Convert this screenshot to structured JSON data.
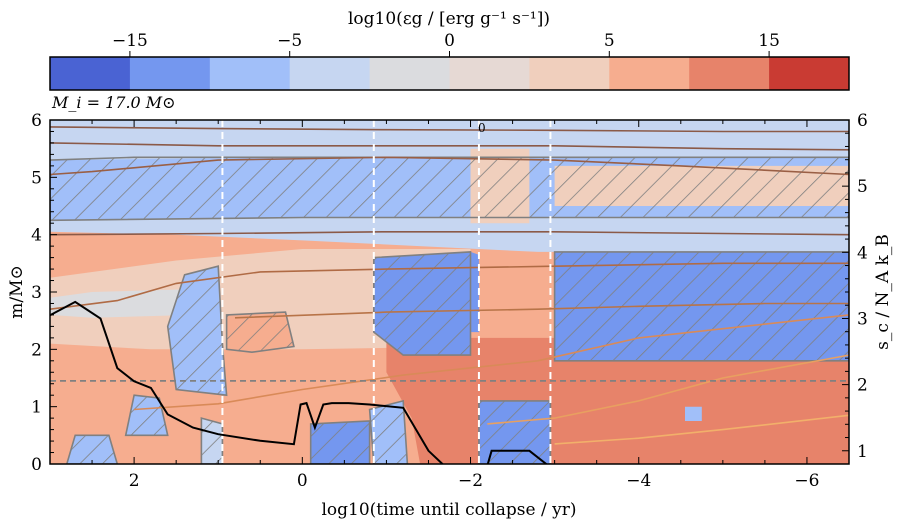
{
  "chart_data": {
    "type": "heatmap",
    "title": "",
    "mass_label": "M_i = 17.0 M⊙",
    "colorbar": {
      "label": "log10(εg / [erg g⁻¹ s⁻¹])",
      "ticks": [
        -15,
        -5,
        0,
        5,
        15
      ],
      "tick_labels": [
        "−15",
        "−5",
        "0",
        "5",
        "15"
      ],
      "bins": [
        "-20",
        "-15",
        "-10",
        "-5",
        "-1",
        "0",
        "1",
        "5",
        "10",
        "15",
        "20"
      ],
      "colors": [
        "#4a63d3",
        "#7497ef",
        "#a1bff9",
        "#c6d6f1",
        "#dbdcdf",
        "#e6d9d4",
        "#f0cfbd",
        "#f6ad8f",
        "#e7836a",
        "#c93b33"
      ]
    },
    "xlabel": "log10(time until collapse / yr)",
    "x_reversed": true,
    "xlim": [
      3.0,
      -6.5
    ],
    "xticks": [
      2,
      0,
      -2,
      -4,
      -6
    ],
    "xtick_labels": [
      "2",
      "0",
      "−2",
      "−4",
      "−6"
    ],
    "ylabel_left": "m/M⊙",
    "ylim_left": [
      0,
      6
    ],
    "yticks_left": [
      0,
      1,
      2,
      3,
      4,
      5,
      6
    ],
    "ylabel_right": "s_c / N_A k_B",
    "ylim_right": [
      0.8,
      6.0
    ],
    "yticks_right": [
      1,
      2,
      3,
      4,
      5,
      6
    ],
    "dashed_vertical_lines_x": [
      0.95,
      -0.85,
      -2.1,
      -2.95
    ],
    "dashed_horizontal_line_m": 1.45,
    "contour_label": "0",
    "central_entropy": {
      "x": [
        3.0,
        2.7,
        2.4,
        2.2,
        2.0,
        1.8,
        1.6,
        1.3,
        1.0,
        0.5,
        0.1,
        0.02,
        -0.05,
        -0.15,
        -0.25,
        -0.35,
        -0.55,
        -0.8,
        -1.2,
        -1.5,
        -1.75,
        -2.0,
        -2.15,
        -2.25,
        -2.35,
        -2.7,
        -2.9,
        -3.2,
        -3.6,
        -4.2,
        -5.0,
        -6.5
      ],
      "y": [
        3.05,
        3.25,
        3.0,
        2.25,
        2.05,
        1.95,
        1.55,
        1.35,
        1.25,
        1.15,
        1.1,
        1.7,
        1.72,
        1.35,
        1.7,
        1.72,
        1.72,
        1.7,
        1.65,
        1.0,
        0.7,
        0.58,
        0.55,
        1.0,
        1.0,
        1.0,
        0.8,
        0.4,
        0.25,
        0.15,
        0.12,
        0.1
      ]
    },
    "entropy_contours": [
      {
        "x": [
          3.0,
          1.0,
          -1.0,
          -3.0,
          -5.0,
          -6.5
        ],
        "y": [
          5.88,
          5.85,
          5.83,
          5.82,
          5.8,
          5.8
        ]
      },
      {
        "x": [
          3.0,
          1.0,
          -1.0,
          -3.0,
          -5.0,
          -6.5
        ],
        "y": [
          5.6,
          5.55,
          5.55,
          5.55,
          5.5,
          5.48
        ]
      },
      {
        "x": [
          3.0,
          2.5,
          1.0,
          -1.0,
          -3.0,
          -4.5,
          -6.5
        ],
        "y": [
          5.05,
          5.1,
          5.3,
          5.35,
          5.3,
          5.2,
          5.05
        ]
      },
      {
        "x": [
          3.0,
          1.0,
          -1.0,
          -3.0,
          -5.0,
          -6.5
        ],
        "y": [
          4.0,
          4.02,
          4.05,
          4.05,
          4.02,
          4.0
        ]
      },
      {
        "x": [
          3.0,
          2.2,
          1.5,
          0.5,
          -1.0,
          -3.0,
          -5.0,
          -6.5
        ],
        "y": [
          2.7,
          2.85,
          3.15,
          3.35,
          3.4,
          3.45,
          3.5,
          3.5
        ]
      },
      {
        "x": [
          0.8,
          -1.0,
          -2.8,
          -4.0,
          -5.5,
          -6.5
        ],
        "y": [
          2.55,
          2.65,
          2.7,
          2.75,
          2.8,
          2.8
        ]
      },
      {
        "x": [
          2.0,
          1.0,
          0.0,
          -1.2,
          -2.8,
          -4.0,
          -6.5
        ],
        "y": [
          0.95,
          1.05,
          1.3,
          1.55,
          1.8,
          2.2,
          2.6
        ]
      },
      {
        "x": [
          -2.2,
          -3.0,
          -4.0,
          -5.0,
          -6.5
        ],
        "y": [
          0.7,
          0.8,
          1.1,
          1.5,
          1.9
        ]
      },
      {
        "x": [
          -3.0,
          -4.0,
          -5.0,
          -6.5
        ],
        "y": [
          0.35,
          0.45,
          0.6,
          0.85
        ]
      }
    ],
    "regions": [
      {
        "points": [
          [
            3.0,
            6.0
          ],
          [
            -6.5,
            6.0
          ],
          [
            -6.5,
            0.0
          ],
          [
            3.0,
            0.0
          ]
        ],
        "color": "#f6ad8f"
      },
      {
        "points": [
          [
            3.0,
            6.0
          ],
          [
            -6.5,
            6.0
          ],
          [
            -6.5,
            3.7
          ],
          [
            -2.8,
            3.7
          ],
          [
            0.0,
            3.9
          ],
          [
            1.5,
            4.0
          ],
          [
            3.0,
            4.05
          ]
        ],
        "color": "#c6d6f1"
      },
      {
        "points": [
          [
            3.0,
            3.25
          ],
          [
            1.5,
            3.55
          ],
          [
            0.0,
            3.75
          ],
          [
            -2.0,
            3.75
          ],
          [
            -2.0,
            2.05
          ],
          [
            0.0,
            2.0
          ],
          [
            1.8,
            2.0
          ],
          [
            3.0,
            2.1
          ]
        ],
        "color": "#f0cfbd"
      },
      {
        "points": [
          [
            3.0,
            2.9
          ],
          [
            2.5,
            3.0
          ],
          [
            1.3,
            3.05
          ],
          [
            1.3,
            2.6
          ],
          [
            2.5,
            2.55
          ],
          [
            3.0,
            2.6
          ]
        ],
        "color": "#dbdcdf"
      },
      {
        "points": [
          [
            -1.0,
            2.2
          ],
          [
            -6.5,
            2.2
          ],
          [
            -6.5,
            0.0
          ],
          [
            -1.4,
            0.0
          ],
          [
            -1.3,
            0.8
          ],
          [
            -1.0,
            1.6
          ]
        ],
        "color": "#e7836a"
      },
      {
        "points": [
          [
            -2.1,
            1.1
          ],
          [
            -2.95,
            1.1
          ],
          [
            -2.95,
            0.0
          ],
          [
            -2.1,
            0.0
          ]
        ],
        "color": "#7497ef"
      },
      {
        "points": [
          [
            3.0,
            5.3
          ],
          [
            0.0,
            5.35
          ],
          [
            -6.5,
            5.35
          ],
          [
            -6.5,
            4.3
          ],
          [
            0.0,
            4.3
          ],
          [
            3.0,
            4.25
          ]
        ],
        "color": "#a1bff9"
      },
      {
        "points": [
          [
            -2.0,
            4.2
          ],
          [
            -2.7,
            4.2
          ],
          [
            -2.7,
            5.5
          ],
          [
            -2.0,
            5.5
          ]
        ],
        "color": "#f0cfbd"
      },
      {
        "points": [
          [
            -3.0,
            5.2
          ],
          [
            -6.5,
            5.2
          ],
          [
            -6.5,
            4.5
          ],
          [
            -3.0,
            4.5
          ]
        ],
        "color": "#f0cfbd"
      },
      {
        "points": [
          [
            1.4,
            3.3
          ],
          [
            1.0,
            3.45
          ],
          [
            0.95,
            2.1
          ],
          [
            0.9,
            1.2
          ],
          [
            1.5,
            1.3
          ],
          [
            1.6,
            2.4
          ]
        ],
        "color": "#a1bff9"
      },
      {
        "points": [
          [
            -0.85,
            3.6
          ],
          [
            -2.0,
            3.7
          ],
          [
            -2.0,
            1.9
          ],
          [
            -1.2,
            1.9
          ],
          [
            -0.85,
            2.3
          ]
        ],
        "color": "#7497ef"
      },
      {
        "points": [
          [
            -2.0,
            3.7
          ],
          [
            -2.1,
            3.65
          ],
          [
            -2.1,
            2.3
          ],
          [
            -2.0,
            2.3
          ]
        ],
        "color": "#7497ef"
      },
      {
        "points": [
          [
            -3.0,
            3.7
          ],
          [
            -6.5,
            3.7
          ],
          [
            -6.5,
            1.8
          ],
          [
            -3.0,
            1.8
          ]
        ],
        "color": "#7497ef"
      },
      {
        "points": [
          [
            0.9,
            2.6
          ],
          [
            0.2,
            2.65
          ],
          [
            0.1,
            2.05
          ],
          [
            0.6,
            1.95
          ],
          [
            0.9,
            2.0
          ]
        ],
        "color": "#f6ad8f"
      },
      {
        "points": [
          [
            -0.8,
            0.95
          ],
          [
            -1.2,
            1.1
          ],
          [
            -1.25,
            0.0
          ],
          [
            -0.85,
            0.0
          ]
        ],
        "color": "#a1bff9"
      },
      {
        "points": [
          [
            -0.1,
            0.7
          ],
          [
            -0.8,
            0.75
          ],
          [
            -0.8,
            0.0
          ],
          [
            -0.1,
            0.0
          ]
        ],
        "color": "#7497ef"
      },
      {
        "points": [
          [
            1.2,
            0.8
          ],
          [
            0.95,
            0.7
          ],
          [
            0.95,
            0.0
          ],
          [
            1.2,
            0.0
          ]
        ],
        "color": "#c6d6f1"
      },
      {
        "points": [
          [
            2.0,
            1.2
          ],
          [
            1.7,
            1.15
          ],
          [
            1.6,
            0.5
          ],
          [
            2.1,
            0.5
          ]
        ],
        "color": "#a1bff9"
      },
      {
        "points": [
          [
            2.7,
            0.5
          ],
          [
            2.3,
            0.5
          ],
          [
            2.2,
            0.0
          ],
          [
            2.8,
            0.0
          ]
        ],
        "color": "#a1bff9"
      },
      {
        "points": [
          [
            -4.55,
            1.0
          ],
          [
            -4.75,
            1.0
          ],
          [
            -4.75,
            0.75
          ],
          [
            -4.55,
            0.75
          ]
        ],
        "color": "#a1bff9"
      }
    ],
    "hatched_regions": [
      {
        "points": [
          [
            3.0,
            5.3
          ],
          [
            2.0,
            5.35
          ],
          [
            1.3,
            5.35
          ],
          [
            0.0,
            5.35
          ],
          [
            -6.5,
            5.35
          ],
          [
            -6.5,
            4.3
          ],
          [
            0.0,
            4.3
          ],
          [
            3.0,
            4.25
          ]
        ]
      },
      {
        "points": [
          [
            1.4,
            3.3
          ],
          [
            1.0,
            3.45
          ],
          [
            0.95,
            2.1
          ],
          [
            0.9,
            1.2
          ],
          [
            1.5,
            1.3
          ],
          [
            1.6,
            2.4
          ]
        ]
      },
      {
        "points": [
          [
            -0.85,
            3.6
          ],
          [
            -2.0,
            3.7
          ],
          [
            -2.0,
            1.9
          ],
          [
            -1.2,
            1.9
          ],
          [
            -0.85,
            2.3
          ]
        ]
      },
      {
        "points": [
          [
            -3.0,
            3.7
          ],
          [
            -6.5,
            3.7
          ],
          [
            -6.5,
            1.8
          ],
          [
            -3.0,
            1.8
          ]
        ]
      },
      {
        "points": [
          [
            0.9,
            2.6
          ],
          [
            0.2,
            2.65
          ],
          [
            0.1,
            2.05
          ],
          [
            0.6,
            1.95
          ],
          [
            0.9,
            2.0
          ]
        ]
      },
      {
        "points": [
          [
            -0.8,
            0.95
          ],
          [
            -1.2,
            1.1
          ],
          [
            -1.25,
            0.0
          ],
          [
            -0.85,
            0.0
          ]
        ]
      },
      {
        "points": [
          [
            -0.1,
            0.7
          ],
          [
            -0.8,
            0.75
          ],
          [
            -0.8,
            0.0
          ],
          [
            -0.1,
            0.0
          ]
        ]
      },
      {
        "points": [
          [
            1.2,
            0.8
          ],
          [
            0.95,
            0.7
          ],
          [
            0.95,
            0.0
          ],
          [
            1.2,
            0.0
          ]
        ]
      },
      {
        "points": [
          [
            2.0,
            1.2
          ],
          [
            1.7,
            1.15
          ],
          [
            1.6,
            0.5
          ],
          [
            2.1,
            0.5
          ]
        ]
      },
      {
        "points": [
          [
            2.7,
            0.5
          ],
          [
            2.3,
            0.5
          ],
          [
            2.2,
            0.0
          ],
          [
            2.8,
            0.0
          ]
        ]
      },
      {
        "points": [
          [
            -2.1,
            1.1
          ],
          [
            -2.95,
            1.1
          ],
          [
            -2.95,
            0.0
          ],
          [
            -2.1,
            0.0
          ]
        ]
      }
    ]
  }
}
